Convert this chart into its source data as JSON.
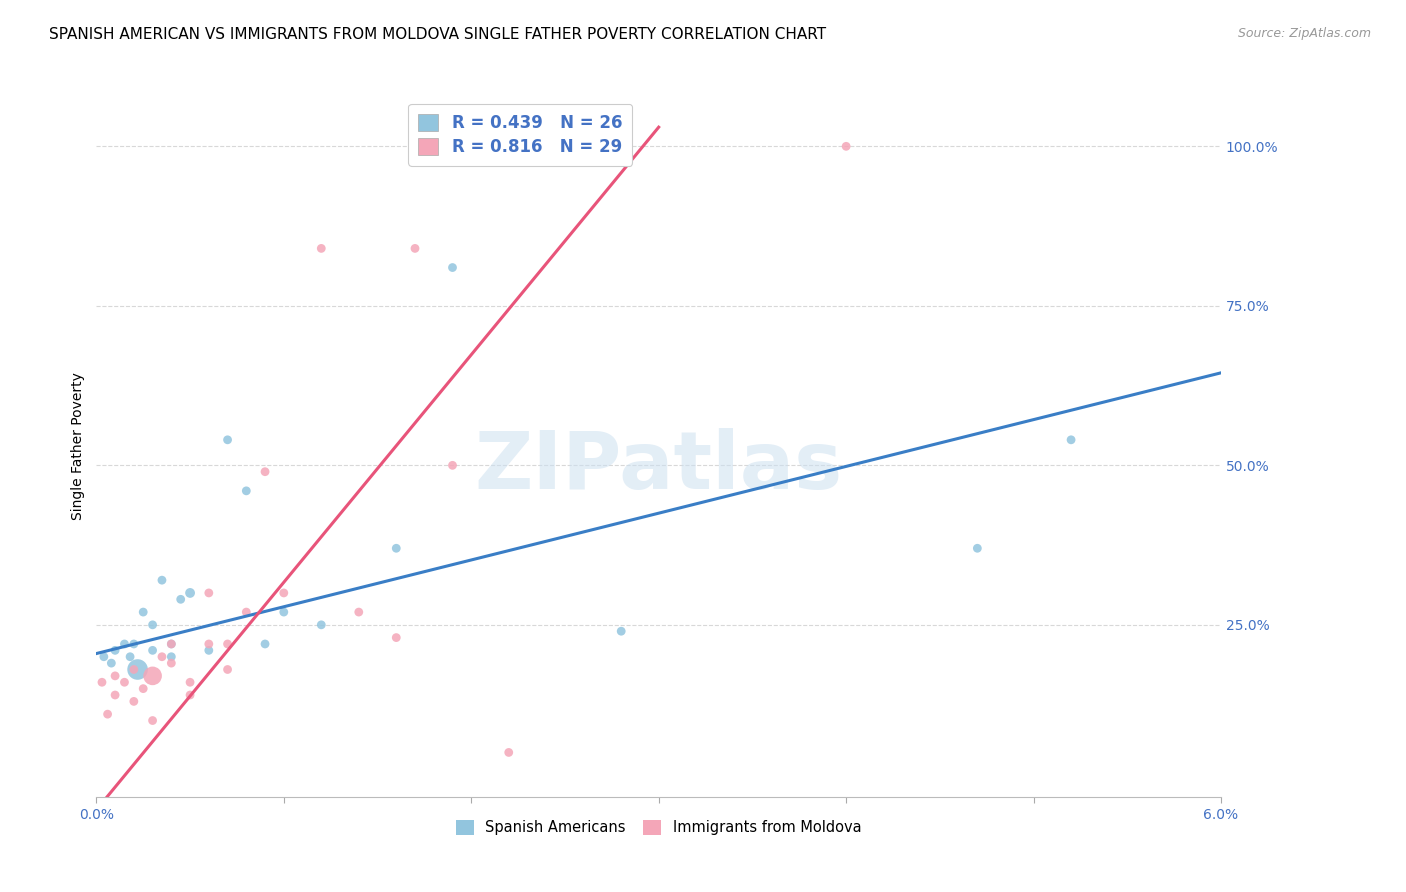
{
  "title": "SPANISH AMERICAN VS IMMIGRANTS FROM MOLDOVA SINGLE FATHER POVERTY CORRELATION CHART",
  "source": "Source: ZipAtlas.com",
  "ylabel": "Single Father Poverty",
  "xlim": [
    0.0,
    0.06
  ],
  "ylim": [
    -0.02,
    1.08
  ],
  "xticks": [
    0.0,
    0.01,
    0.02,
    0.03,
    0.04,
    0.05,
    0.06
  ],
  "xtick_labels": [
    "0.0%",
    "",
    "",
    "",
    "",
    "",
    "6.0%"
  ],
  "ytick_labels": [
    "25.0%",
    "50.0%",
    "75.0%",
    "100.0%"
  ],
  "yticks": [
    0.25,
    0.5,
    0.75,
    1.0
  ],
  "legend1_r": "0.439",
  "legend1_n": "26",
  "legend2_r": "0.816",
  "legend2_n": "29",
  "blue_color": "#92c5de",
  "pink_color": "#f4a6b8",
  "blue_line_color": "#3a7ec6",
  "pink_line_color": "#e8547a",
  "background_color": "#ffffff",
  "grid_color": "#d8d8d8",
  "text_color": "#4472c4",
  "spanish_americans_x": [
    0.0004,
    0.0008,
    0.001,
    0.0015,
    0.0018,
    0.002,
    0.0022,
    0.0025,
    0.003,
    0.003,
    0.0035,
    0.004,
    0.004,
    0.0045,
    0.005,
    0.006,
    0.007,
    0.008,
    0.009,
    0.01,
    0.012,
    0.016,
    0.019,
    0.028,
    0.047,
    0.052
  ],
  "spanish_americans_y": [
    0.2,
    0.19,
    0.21,
    0.22,
    0.2,
    0.22,
    0.18,
    0.27,
    0.21,
    0.25,
    0.32,
    0.2,
    0.22,
    0.29,
    0.3,
    0.21,
    0.54,
    0.46,
    0.22,
    0.27,
    0.25,
    0.37,
    0.81,
    0.24,
    0.37,
    0.54
  ],
  "spanish_americans_size": [
    40,
    40,
    40,
    40,
    40,
    40,
    220,
    40,
    40,
    40,
    40,
    40,
    40,
    40,
    50,
    40,
    40,
    40,
    40,
    40,
    40,
    40,
    40,
    40,
    40,
    40
  ],
  "moldova_x": [
    0.0003,
    0.0006,
    0.001,
    0.001,
    0.0015,
    0.002,
    0.002,
    0.0025,
    0.003,
    0.003,
    0.0035,
    0.004,
    0.004,
    0.005,
    0.005,
    0.006,
    0.006,
    0.007,
    0.007,
    0.008,
    0.009,
    0.01,
    0.012,
    0.014,
    0.016,
    0.017,
    0.019,
    0.022,
    0.04
  ],
  "moldova_y": [
    0.16,
    0.11,
    0.14,
    0.17,
    0.16,
    0.13,
    0.18,
    0.15,
    0.17,
    0.1,
    0.2,
    0.19,
    0.22,
    0.16,
    0.14,
    0.22,
    0.3,
    0.18,
    0.22,
    0.27,
    0.49,
    0.3,
    0.84,
    0.27,
    0.23,
    0.84,
    0.5,
    0.05,
    1.0
  ],
  "moldova_size": [
    40,
    40,
    40,
    40,
    40,
    40,
    40,
    40,
    180,
    40,
    40,
    40,
    40,
    40,
    40,
    40,
    40,
    40,
    40,
    40,
    40,
    40,
    40,
    40,
    40,
    40,
    40,
    40,
    40
  ],
  "blue_trend_x": [
    0.0,
    0.06
  ],
  "blue_trend_y": [
    0.205,
    0.645
  ],
  "pink_trend_x": [
    0.0,
    0.03
  ],
  "pink_trend_y": [
    -0.04,
    1.03
  ],
  "title_fontsize": 11,
  "axis_label_fontsize": 10,
  "tick_fontsize": 10,
  "watermark_text": "ZIPatlas"
}
